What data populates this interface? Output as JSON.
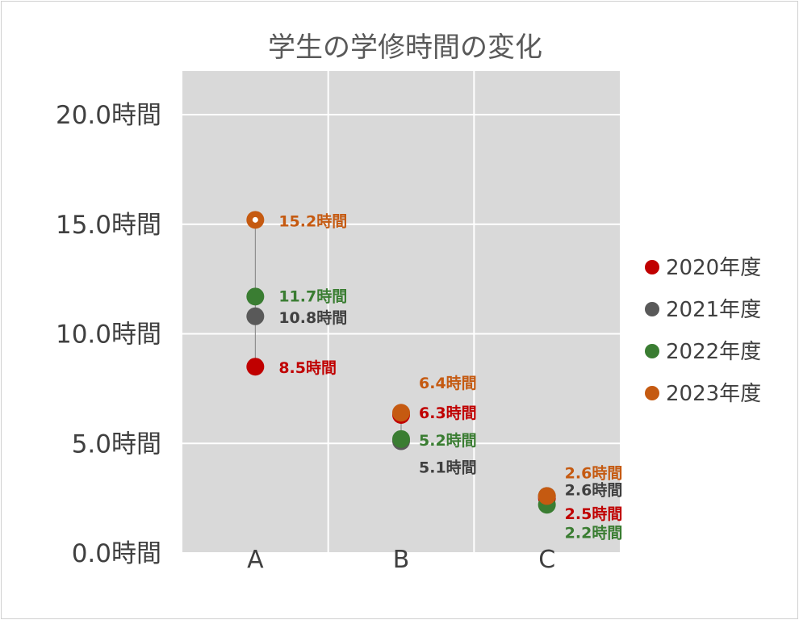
{
  "chart_data": {
    "type": "scatter",
    "title": "学生の学修時間の変化",
    "xlabel": "",
    "ylabel": "",
    "categories": [
      "A",
      "B",
      "C"
    ],
    "ylim": [
      0,
      20
    ],
    "y_ticks": [
      "0.0時間",
      "5.0時間",
      "10.0時間",
      "15.0時間",
      "20.0時間"
    ],
    "y_tick_values": [
      0,
      5,
      10,
      15,
      20
    ],
    "grid": true,
    "legend_position": "right",
    "series": [
      {
        "name": "2020年度",
        "color": "#c00000",
        "label_color": "#c00000",
        "values": [
          8.5,
          6.3,
          2.5
        ],
        "labels": [
          "8.5時間",
          "6.3時間",
          "2.5時間"
        ]
      },
      {
        "name": "2021年度",
        "color": "#595959",
        "label_color": "#404040",
        "values": [
          10.8,
          5.1,
          2.6
        ],
        "labels": [
          "10.8時間",
          "5.1時間",
          "2.6時間"
        ]
      },
      {
        "name": "2022年度",
        "color": "#3a7d32",
        "label_color": "#3a7d32",
        "values": [
          11.7,
          5.2,
          2.2
        ],
        "labels": [
          "11.7時間",
          "5.2時間",
          "2.2時間"
        ]
      },
      {
        "name": "2023年度",
        "color": "#c55a11",
        "label_color": "#c55a11",
        "values": [
          15.2,
          6.4,
          2.6
        ],
        "labels": [
          "15.2時間",
          "6.4時間",
          "2.6時間"
        ]
      }
    ]
  }
}
